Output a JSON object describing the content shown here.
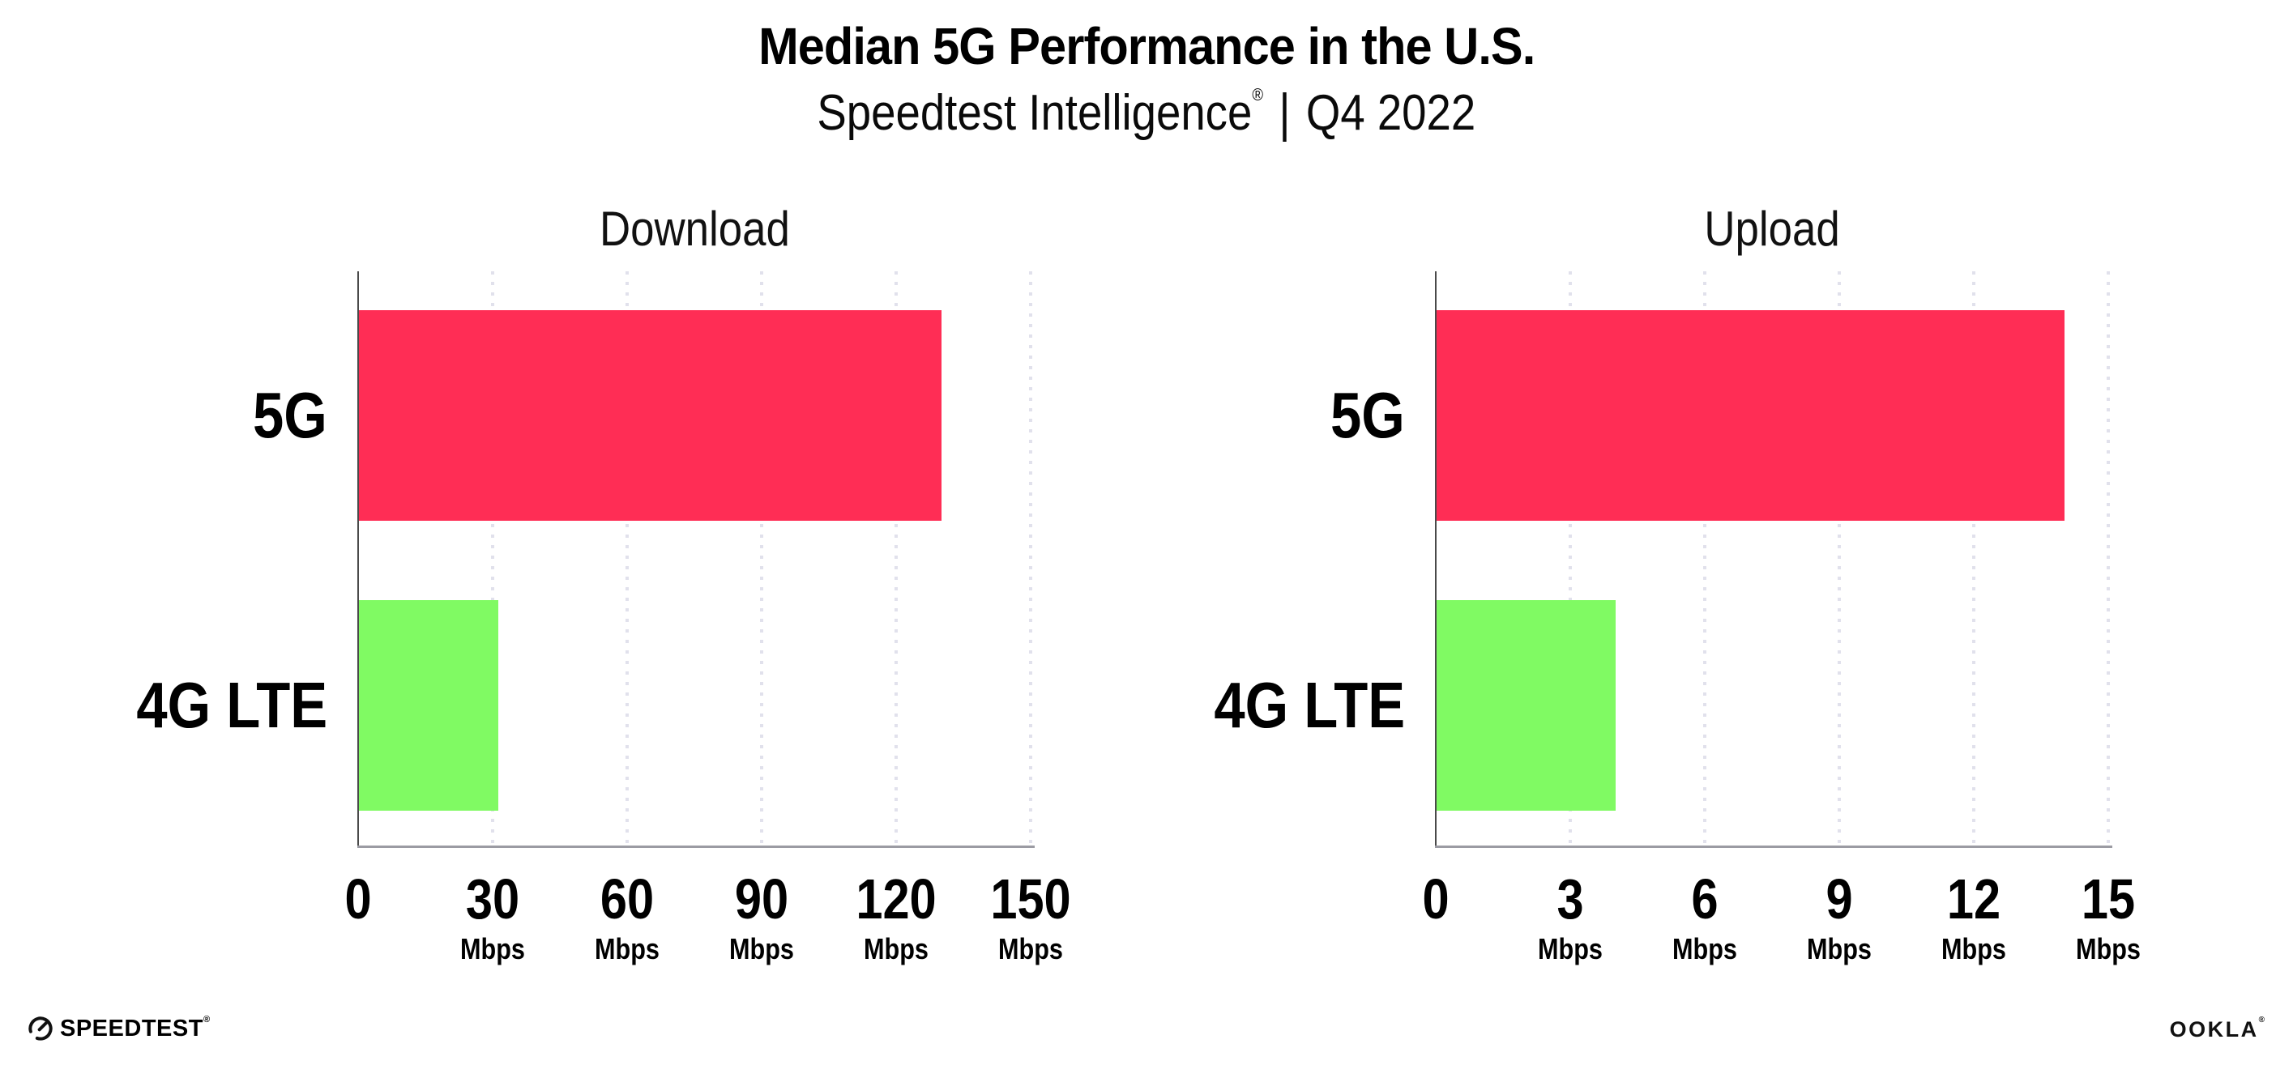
{
  "header": {
    "title": "Median 5G Performance in the U.S.",
    "subtitle_brand": "Speedtest Intelligence",
    "subtitle_reg_mark": "®",
    "subtitle_divider": "|",
    "subtitle_period": "Q4 2022"
  },
  "chart_data": [
    {
      "type": "bar",
      "orientation": "horizontal",
      "title": "Download",
      "categories": [
        "5G",
        "4G LTE"
      ],
      "values": [
        130,
        31
      ],
      "unit": "Mbps",
      "xlim": [
        0,
        150
      ],
      "xticks": [
        0,
        30,
        60,
        90,
        120,
        150
      ],
      "bar_colors": [
        "#ff2d55",
        "#80fa63"
      ],
      "grid": "dotted-vertical-major",
      "legend": "none"
    },
    {
      "type": "bar",
      "orientation": "horizontal",
      "title": "Upload",
      "categories": [
        "5G",
        "4G LTE"
      ],
      "values": [
        14,
        4
      ],
      "unit": "Mbps",
      "xlim": [
        0,
        15
      ],
      "xticks": [
        0,
        3,
        6,
        9,
        12,
        15
      ],
      "bar_colors": [
        "#ff2d55",
        "#80fa63"
      ],
      "grid": "dotted-vertical-major",
      "legend": "none"
    }
  ],
  "footer": {
    "speedtest_logo_text": "SPEEDTEST",
    "speedtest_reg_mark": "®",
    "ookla_logo_text": "OOKLA",
    "ookla_reg_mark": "®"
  },
  "colors": {
    "bar_5g": "#ff2d55",
    "bar_4g_lte": "#80fa63",
    "x_axis_line": "#9b9ba3",
    "y_axis_line": "#4a4a4a",
    "gridline": "#e1e1ec",
    "text": "#000000",
    "background": "#ffffff"
  }
}
